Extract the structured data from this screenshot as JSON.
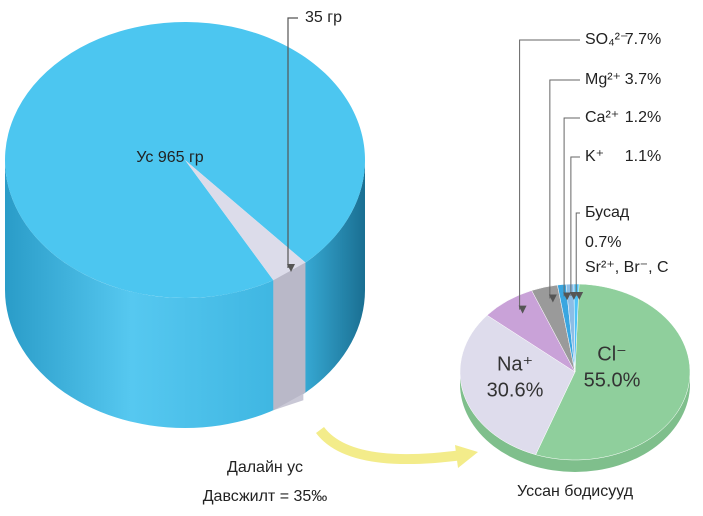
{
  "chart_data": [
    {
      "type": "pie",
      "values": [
        965,
        35
      ],
      "value_labels": [
        "Ус 965 гр",
        "35 гр"
      ],
      "colors": [
        "#4cc6f0",
        "#dcdcea"
      ],
      "title": "Далайн ус",
      "subtitle": "Давсжилт = 35‰"
    },
    {
      "type": "pie",
      "categories": [
        "Cl⁻",
        "Na⁺",
        "SO₄²⁻",
        "Mg²⁺",
        "Ca²⁺",
        "K⁺",
        "Бусад"
      ],
      "values": [
        55.0,
        30.6,
        7.7,
        3.7,
        1.2,
        1.1,
        0.7
      ],
      "value_labels": [
        "55.0%",
        "30.6%",
        "7.7%",
        "3.7%",
        "1.2%",
        "1.1%",
        "0.7%"
      ],
      "colors": [
        "#8fcf9c",
        "#dedcec",
        "#c9a2d8",
        "#9a9a9a",
        "#3aa6e0",
        "#8cbde6",
        "#4fc3f7"
      ],
      "note": "Sr²⁺, Br⁻, C",
      "title": "Уссан бодисууд"
    }
  ]
}
